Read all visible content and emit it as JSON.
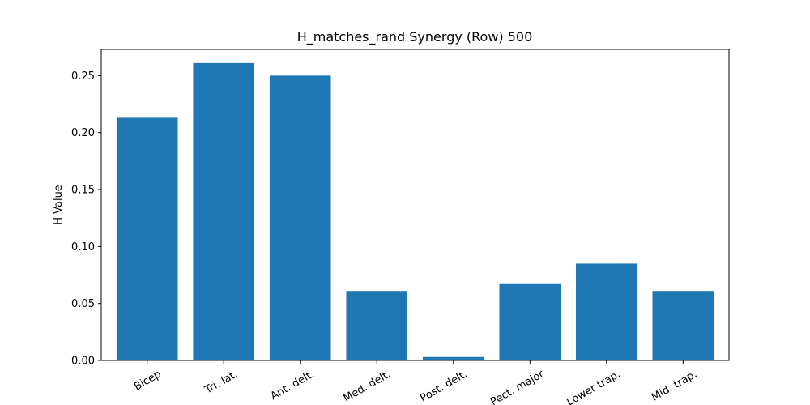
{
  "chart_data": {
    "type": "bar",
    "title": "H_matches_rand Synergy (Row) 500",
    "xlabel": "",
    "ylabel": "H Value",
    "categories": [
      "Bicep",
      "Tri. lat.",
      "Ant. delt.",
      "Med. delt.",
      "Post. delt.",
      "Pect. major",
      "Lower trap.",
      "Mid. trap."
    ],
    "values": [
      0.213,
      0.261,
      0.25,
      0.061,
      0.003,
      0.067,
      0.085,
      0.061
    ],
    "ylim": [
      0,
      0.273
    ],
    "yticks": [
      "0.00",
      "0.05",
      "0.10",
      "0.15",
      "0.20",
      "0.25"
    ],
    "bar_color": "#1f77b4",
    "grid": false,
    "legend": "none"
  }
}
